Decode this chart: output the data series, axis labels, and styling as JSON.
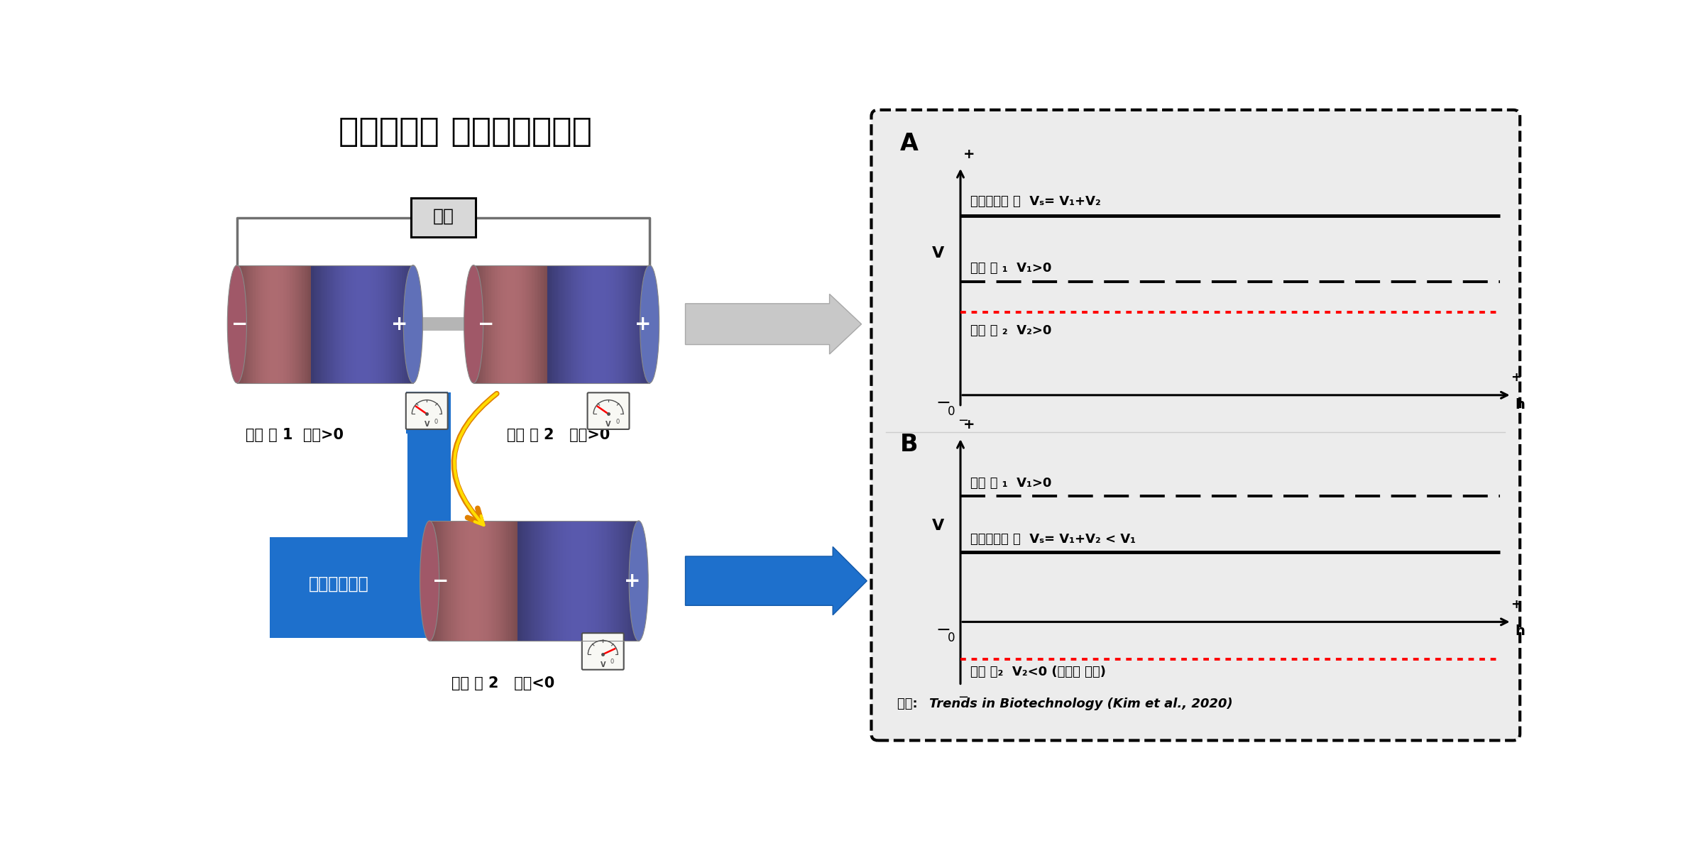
{
  "title": "직렬연결된 미생물연료전지",
  "title_fontsize": 34,
  "bg_color": "#ffffff",
  "cell1_label": "단위 셀 1  전압>0",
  "cell2_top_label": "단위 셀 2   전압>0",
  "cell2_bot_label": "단위 셀 2   전압<0",
  "resistance_label": "저항",
  "voltage_reversal_label": "전압역전현상",
  "panel_A_label": "A",
  "panel_B_label": "B",
  "lineA1_label": "직렬연결된 셀  Vₛ= V₁+V₂",
  "lineA2_label": "단위 셀 ₁  V₁>0",
  "lineA3_label": "단위 셀 ₂  V₂>0",
  "lineB1_label": "단위 셀 ₁  V₁>0",
  "lineB2_label": "직렬연결된 셀  Vₛ= V₁+V₂ < V₁",
  "lineB3_label": "단위 셀₂  V₂<0 (역전된 전압)",
  "source_label": "출처: ",
  "source_italic": "Trends in Biotechnology (Kim et al., 2020)"
}
